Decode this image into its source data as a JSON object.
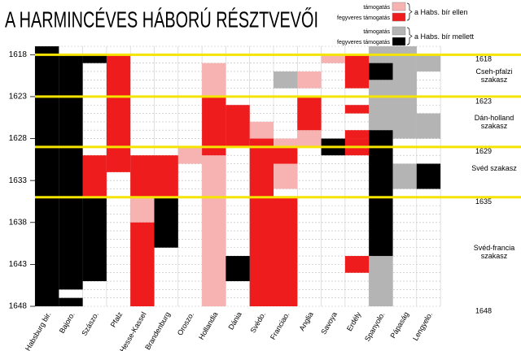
{
  "chart_data": {
    "type": "timeline",
    "title": "A HARMINCÉVES HÁBORÚ RÉSZTVEVŐI",
    "categories": [
      "Habsburg bir.",
      "Bajoro.",
      "Szászo.",
      "Pfalz",
      "Hesse-Kassel",
      "Brandenburg",
      "Oroszo.",
      "Hollandia",
      "Dánia",
      "Svédo.",
      "Franciao.",
      "Anglia",
      "Savoya",
      "Erdély",
      "Spanyolo.",
      "Pápaság",
      "Lengyelo."
    ],
    "ylim": [
      1617,
      1648
    ],
    "yticks": [
      1618,
      1623,
      1628,
      1633,
      1638,
      1643,
      1648
    ],
    "phases": [
      {
        "value": 1618,
        "label": "Cseh-pfalzi szakasz"
      },
      {
        "value": 1623,
        "label": "Dán-holland szakasz"
      },
      {
        "value": 1629,
        "label": "Svéd szakasz"
      },
      {
        "value": 1635,
        "label": "Svéd-francia szakasz"
      },
      {
        "value": 1648
      }
    ],
    "phase_color": "#f5e400",
    "groups": [
      {
        "label": "a Habs. bír ellen",
        "series": [
          {
            "name": "támogatás",
            "color": "#f7b2b2",
            "values": [
              [],
              [],
              [],
              [],
              [
                [
                  1635,
                  1638
                ]
              ],
              [],
              [
                [
                  1629,
                  1631
                ]
              ],
              [
                [
                  1619,
                  1623
                ],
                [
                  1630,
                  1648
                ]
              ],
              [],
              [
                [
                  1626,
                  1628
                ]
              ],
              [
                [
                  1628,
                  1629
                ],
                [
                  1631,
                  1634
                ]
              ],
              [
                [
                  1620,
                  1622
                ],
                [
                  1627,
                  1629
                ]
              ],
              [
                [
                  1618,
                  1619
                ]
              ],
              [],
              [],
              [],
              []
            ]
          },
          {
            "name": "fegyveres támogatás",
            "color": "#ee1c1c",
            "values": [
              [],
              [],
              [
                [
                  1630,
                  1635
                ]
              ],
              [
                [
                  1618,
                  1632
                ]
              ],
              [
                [
                  1630,
                  1635
                ],
                [
                  1638,
                  1648
                ]
              ],
              [
                [
                  1630,
                  1635
                ]
              ],
              [],
              [
                [
                  1623,
                  1630
                ]
              ],
              [
                [
                  1624,
                  1629
                ]
              ],
              [
                [
                  1628,
                  1648
                ]
              ],
              [
                [
                  1629,
                  1631
                ],
                [
                  1635,
                  1648
                ]
              ],
              [
                [
                  1623,
                  1627
                ]
              ],
              [],
              [
                [
                  1618,
                  1622
                ],
                [
                  1624,
                  1625
                ],
                [
                  1627,
                  1628
                ],
                [
                  1628,
                  1630
                ],
                [
                  1642,
                  1644
                ]
              ],
              [],
              [],
              []
            ]
          }
        ]
      },
      {
        "label": "a Habs. bír mellett",
        "series": [
          {
            "name": "támogatás",
            "color": "#b4b4b4",
            "values": [
              [],
              [],
              [],
              [],
              [],
              [],
              [],
              [],
              [],
              [],
              [
                [
                  1620,
                  1622
                ]
              ],
              [],
              [],
              [],
              [
                [
                  1617,
                  1619
                ],
                [
                  1621,
                  1627
                ],
                [
                  1642,
                  1648
                ]
              ],
              [
                [
                  1617,
                  1628
                ],
                [
                  1631,
                  1634
                ]
              ],
              [
                [
                  1618,
                  1620
                ],
                [
                  1625,
                  1628
                ]
              ]
            ]
          },
          {
            "name": "fegyveres támogatás",
            "color": "#000000",
            "values": [
              [
                [
                  1617,
                  1648
                ]
              ],
              [
                [
                  1618,
                  1646
                ],
                [
                  1647,
                  1648
                ]
              ],
              [
                [
                  1618,
                  1619
                ],
                [
                  1635,
                  1645
                ]
              ],
              [],
              [],
              [
                [
                  1635,
                  1641
                ]
              ],
              [],
              [],
              [
                [
                  1642,
                  1645
                ]
              ],
              [],
              [],
              [],
              [
                [
                  1628,
                  1630
                ]
              ],
              [],
              [
                [
                  1619,
                  1621
                ],
                [
                  1627,
                  1642
                ]
              ],
              [],
              [
                [
                  1631,
                  1634
                ]
              ]
            ]
          }
        ]
      }
    ]
  }
}
